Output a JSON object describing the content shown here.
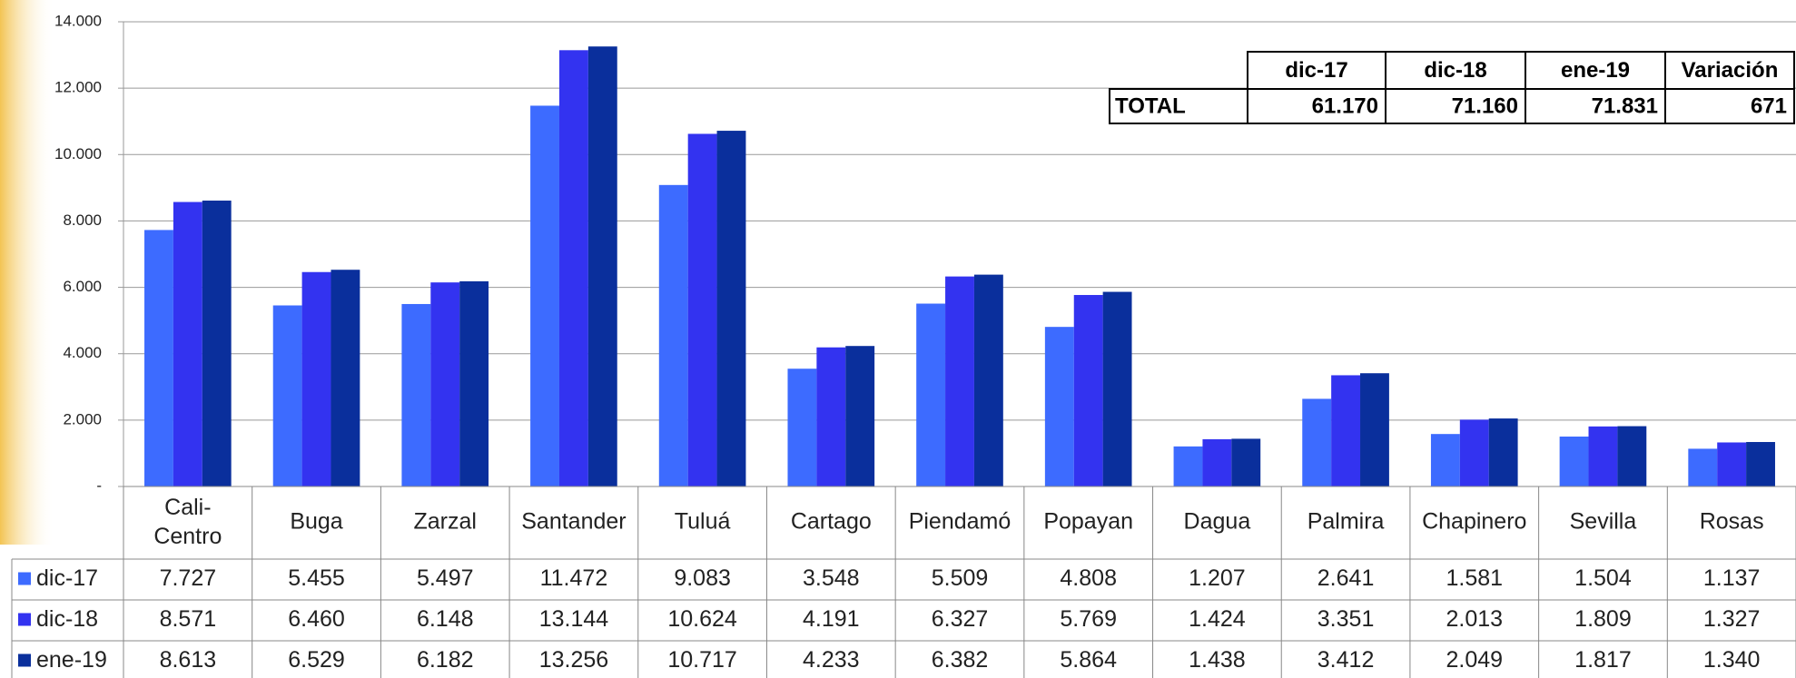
{
  "chart_data": {
    "type": "bar",
    "categories": [
      "Cali-Centro",
      "Buga",
      "Zarzal",
      "Santander",
      "Tuluá",
      "Cartago",
      "Piendamó",
      "Popayan",
      "Dagua",
      "Palmira",
      "Chapinero",
      "Sevilla",
      "Rosas"
    ],
    "series": [
      {
        "name": "dic-17",
        "color": "#3d6bff",
        "values": [
          7727,
          5455,
          5497,
          11472,
          9083,
          3548,
          5509,
          4808,
          1207,
          2641,
          1581,
          1504,
          1137
        ],
        "value_labels": [
          "7.727",
          "5.455",
          "5.497",
          "11.472",
          "9.083",
          "3.548",
          "5.509",
          "4.808",
          "1.207",
          "2.641",
          "1.581",
          "1.504",
          "1.137"
        ]
      },
      {
        "name": "dic-18",
        "color": "#3333f0",
        "values": [
          8571,
          6460,
          6148,
          13144,
          10624,
          4191,
          6327,
          5769,
          1424,
          3351,
          2013,
          1809,
          1327
        ],
        "value_labels": [
          "8.571",
          "6.460",
          "6.148",
          "13.144",
          "10.624",
          "4.191",
          "6.327",
          "5.769",
          "1.424",
          "3.351",
          "2.013",
          "1.809",
          "1.327"
        ]
      },
      {
        "name": "ene-19",
        "color": "#0a2f9c",
        "values": [
          8613,
          6529,
          6182,
          13256,
          10717,
          4233,
          6382,
          5864,
          1438,
          3412,
          2049,
          1817,
          1340
        ],
        "value_labels": [
          "8.613",
          "6.529",
          "6.182",
          "13.256",
          "10.717",
          "4.233",
          "6.382",
          "5.864",
          "1.438",
          "3.412",
          "2.049",
          "1.817",
          "1.340"
        ]
      }
    ],
    "ylim": [
      0,
      14000
    ],
    "yticks": [
      {
        "value": 0,
        "label": "-"
      },
      {
        "value": 2000,
        "label": "2.000"
      },
      {
        "value": 4000,
        "label": "4.000"
      },
      {
        "value": 6000,
        "label": "6.000"
      },
      {
        "value": 8000,
        "label": "8.000"
      },
      {
        "value": 10000,
        "label": "10.000"
      },
      {
        "value": 12000,
        "label": "12.000"
      },
      {
        "value": 14000,
        "label": "14.000"
      }
    ],
    "grid": true,
    "summary_table": {
      "columns": [
        "dic-17",
        "dic-18",
        "ene-19",
        "Variación"
      ],
      "row_label": "TOTAL",
      "cells": [
        "61.170",
        "71.160",
        "71.831",
        "671"
      ]
    }
  }
}
